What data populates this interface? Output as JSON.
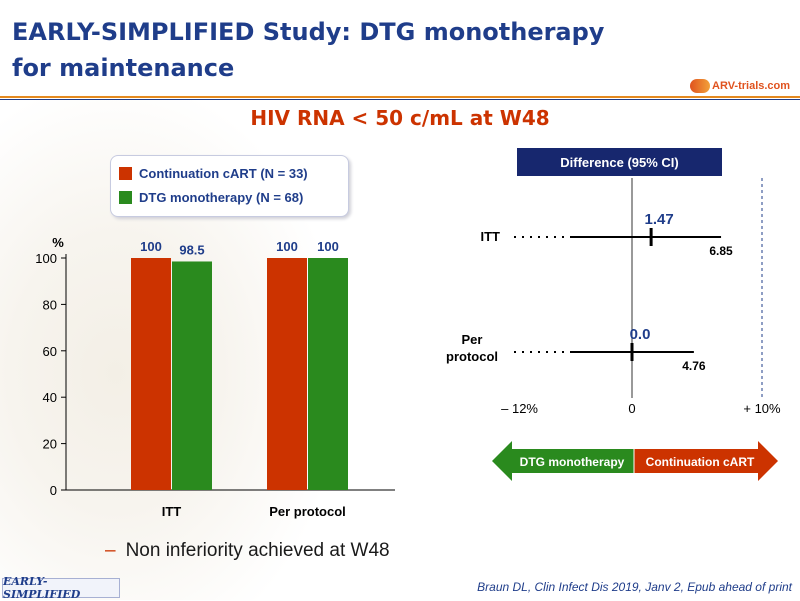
{
  "slide": {
    "title_line1": "EARLY-SIMPLIFIED Study: DTG monotherapy",
    "title_line2": "for maintenance",
    "logo_text": "ARV-trials.com",
    "subtitle": "HIV RNA < 50 c/mL at W48",
    "bullet": "Non inferiority achieved at W48",
    "study_tag": "EARLY-SIMPLIFIED",
    "citation": "Braun DL, Clin Infect Dis 2019, Janv 2, Epub ahead of print"
  },
  "colors": {
    "continuation": "#cc3300",
    "dtg": "#2a8a1e",
    "navy": "#17276e",
    "title_blue": "#1f3d8a",
    "orange_rule": "#e58a1f"
  },
  "chart_data": [
    {
      "type": "bar",
      "ylabel": "%",
      "ylim": [
        0,
        100
      ],
      "yticks": [
        0,
        20,
        40,
        60,
        80,
        100
      ],
      "categories": [
        "ITT",
        "Per protocol"
      ],
      "series": [
        {
          "name": "Continuation  cART (N = 33)",
          "color": "#cc3300",
          "values": [
            100,
            100
          ],
          "labels": [
            "100",
            "100"
          ]
        },
        {
          "name": "DTG  monotherapy  (N = 68)",
          "color": "#2a8a1e",
          "values": [
            98.5,
            100
          ],
          "labels": [
            "98.5",
            "100"
          ]
        }
      ],
      "legend": "top"
    },
    {
      "type": "forest",
      "title": "Difference  (95% CI)",
      "xlim": [
        -12,
        10
      ],
      "xtick_labels": {
        "left": "– 12%",
        "center": "0",
        "right": "+ 10%"
      },
      "margin": 10,
      "rows": [
        {
          "label": "ITT",
          "estimate": 1.47,
          "estimate_label": "1.47",
          "lower": -12,
          "upper": 6.85,
          "upper_label": "6.85"
        },
        {
          "label_line1": "Per",
          "label_line2": "protocol",
          "estimate": 0.0,
          "estimate_label": "0.0",
          "lower": -12,
          "upper": 4.76,
          "upper_label": "4.76"
        }
      ],
      "arrows": {
        "left": "DTG monotherapy",
        "right": "Continuation cART"
      }
    }
  ]
}
